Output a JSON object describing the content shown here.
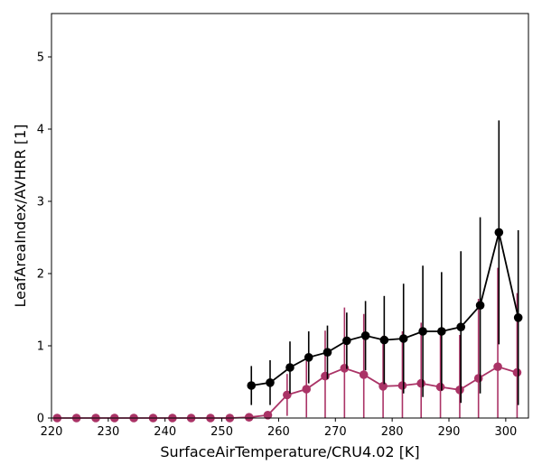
{
  "chart_data": {
    "type": "line",
    "title": "",
    "xlabel": "SurfaceAirTemperature/CRU4.02 [K]",
    "ylabel": "LeafAreaIndex/AVHRR [1]",
    "xlim": [
      220,
      304
    ],
    "ylim": [
      0,
      5.6
    ],
    "xticks": [
      220,
      230,
      240,
      250,
      260,
      270,
      280,
      290,
      300
    ],
    "yticks": [
      0,
      1,
      2,
      3,
      4,
      5
    ],
    "grid": false,
    "legend": "none",
    "series": [
      {
        "color": "#000000",
        "x": [
          255.2,
          258.5,
          262.0,
          265.3,
          268.6,
          272.0,
          275.3,
          278.6,
          282.0,
          285.4,
          288.7,
          292.1,
          295.5,
          298.8,
          302.2
        ],
        "y": [
          0.45,
          0.49,
          0.7,
          0.84,
          0.91,
          1.07,
          1.14,
          1.08,
          1.1,
          1.2,
          1.2,
          1.26,
          1.56,
          2.57,
          1.39
        ],
        "yerr": [
          0.27,
          0.31,
          0.36,
          0.36,
          0.37,
          0.39,
          0.48,
          0.61,
          0.76,
          0.91,
          0.82,
          1.05,
          1.22,
          1.55,
          1.21
        ]
      },
      {
        "color": "#aa3366",
        "x": [
          221.0,
          224.4,
          227.8,
          231.1,
          234.5,
          237.9,
          241.3,
          244.6,
          248.0,
          251.4,
          254.8,
          258.1,
          261.5,
          264.9,
          268.2,
          271.6,
          275.0,
          278.4,
          281.8,
          285.1,
          288.5,
          291.9,
          295.2,
          298.6,
          302.0
        ],
        "y": [
          0,
          0,
          0,
          0,
          0,
          0,
          0,
          0,
          0,
          0,
          0.01,
          0.04,
          0.32,
          0.4,
          0.58,
          0.69,
          0.6,
          0.44,
          0.45,
          0.48,
          0.43,
          0.39,
          0.55,
          0.71,
          0.63
        ],
        "yerr": [
          0,
          0,
          0,
          0,
          0,
          0,
          0,
          0,
          0,
          0,
          0.01,
          0.03,
          0.29,
          0.39,
          0.63,
          0.84,
          0.84,
          0.7,
          0.75,
          0.84,
          0.72,
          0.76,
          1.1,
          1.37,
          1.1
        ]
      }
    ]
  }
}
